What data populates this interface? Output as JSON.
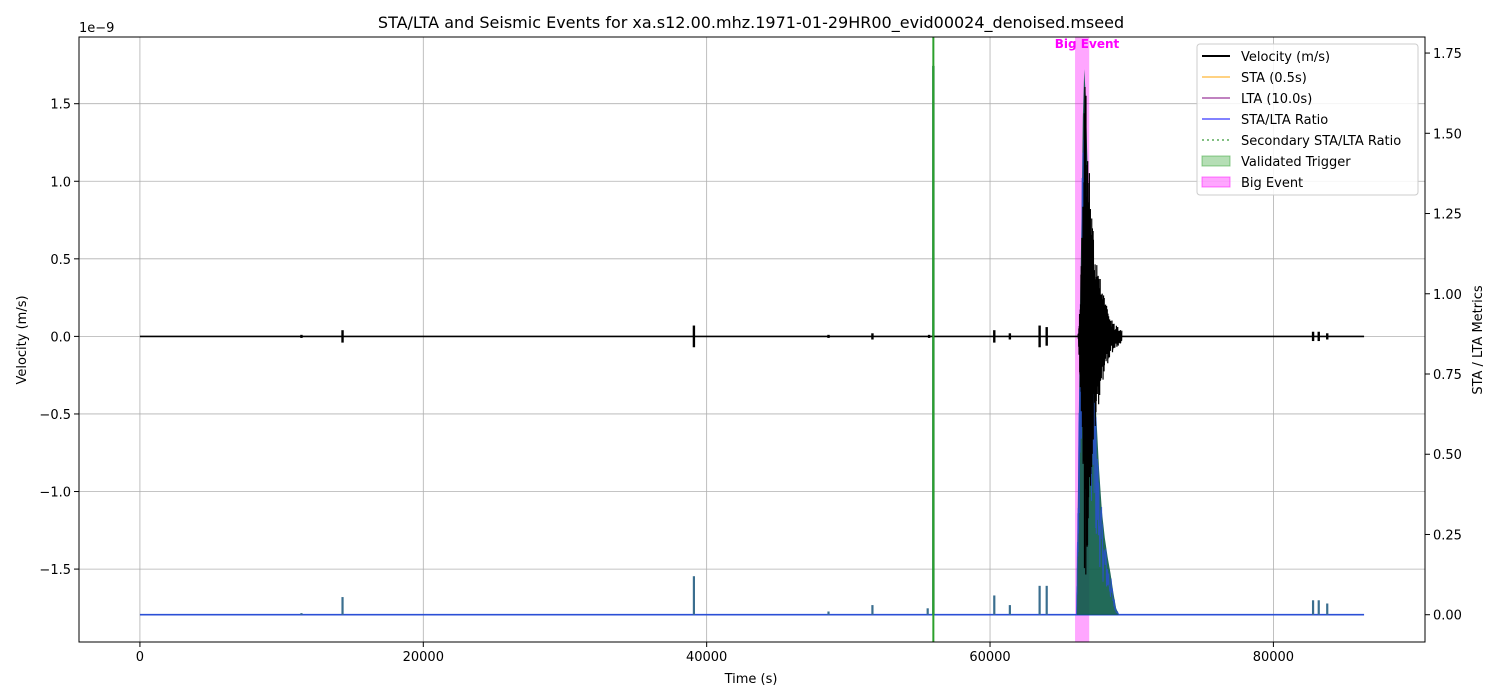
{
  "chart_data": {
    "type": "line",
    "title": "STA/LTA and Seismic Events for xa.s12.00.mhz.1971-01-29HR00_evid00024_denoised.mseed",
    "xlabel": "Time (s)",
    "ylabel_left": "Velocity (m/s)",
    "ylabel_right": "STA / LTA Metrics",
    "left_offset_label": "1e−9",
    "xlim": [
      -4300,
      90700
    ],
    "ylim_left": [
      -1.97,
      1.93
    ],
    "ylim_right": [
      -0.085,
      1.8
    ],
    "x_ticks": [
      0,
      20000,
      40000,
      60000,
      80000
    ],
    "x_tick_labels": [
      "0",
      "20000",
      "40000",
      "60000",
      "80000"
    ],
    "y_left_ticks": [
      -1.5,
      -1.0,
      -0.5,
      0.0,
      0.5,
      1.0,
      1.5
    ],
    "y_left_tick_labels": [
      "−1.5",
      "−1.0",
      "−0.5",
      "0.0",
      "0.5",
      "1.0",
      "1.5"
    ],
    "y_right_ticks": [
      0.0,
      0.25,
      0.5,
      0.75,
      1.0,
      1.25,
      1.5,
      1.75
    ],
    "y_right_tick_labels": [
      "0.00",
      "0.25",
      "0.50",
      "0.75",
      "1.00",
      "1.25",
      "1.50",
      "1.75"
    ],
    "grid": true,
    "legend_position": "top-right",
    "legend": [
      {
        "label": "Velocity (m/s)",
        "color": "#000000",
        "style": "solid"
      },
      {
        "label": "STA (0.5s)",
        "color": "#ffa500",
        "style": "solid"
      },
      {
        "label": "LTA (10.0s)",
        "color": "#800080",
        "style": "solid"
      },
      {
        "label": "STA/LTA Ratio",
        "color": "#0000ff",
        "style": "solid"
      },
      {
        "label": "Secondary STA/LTA Ratio",
        "color": "#008000",
        "style": "dotted"
      },
      {
        "label": "Validated Trigger",
        "color": "#2ca02c",
        "style": "patch"
      },
      {
        "label": "Big Event",
        "color": "#ff00ff",
        "style": "patch"
      }
    ],
    "velocity_range_x": [
      0,
      86400
    ],
    "velocity_bursts": [
      {
        "x": 11400,
        "amp": 0.01
      },
      {
        "x": 14300,
        "amp": 0.04
      },
      {
        "x": 39100,
        "amp": 0.07
      },
      {
        "x": 48600,
        "amp": 0.01
      },
      {
        "x": 51700,
        "amp": 0.02
      },
      {
        "x": 55700,
        "amp": 0.01
      },
      {
        "x": 60300,
        "amp": 0.04
      },
      {
        "x": 61400,
        "amp": 0.02
      },
      {
        "x": 63500,
        "amp": 0.07
      },
      {
        "x": 64000,
        "amp": 0.06
      },
      {
        "x": 82800,
        "amp": 0.03
      },
      {
        "x": 83200,
        "amp": 0.03
      },
      {
        "x": 83800,
        "amp": 0.02
      }
    ],
    "big_event_velocity": {
      "start": 66200,
      "peak_x": 66700,
      "end": 69300,
      "max_amp": 1.75
    },
    "ratio_spikes": [
      {
        "x": 11400,
        "y": 0.005
      },
      {
        "x": 14300,
        "y": 0.055
      },
      {
        "x": 39100,
        "y": 0.12
      },
      {
        "x": 48600,
        "y": 0.01
      },
      {
        "x": 51700,
        "y": 0.03
      },
      {
        "x": 55600,
        "y": 0.02
      },
      {
        "x": 56000,
        "y": 1.71
      },
      {
        "x": 60300,
        "y": 0.06
      },
      {
        "x": 61400,
        "y": 0.03
      },
      {
        "x": 63500,
        "y": 0.09
      },
      {
        "x": 64000,
        "y": 0.09
      },
      {
        "x": 82800,
        "y": 0.045
      },
      {
        "x": 83200,
        "y": 0.045
      },
      {
        "x": 83800,
        "y": 0.035
      }
    ],
    "ratio_event_envelope": [
      [
        66100,
        0.0
      ],
      [
        66150,
        0.18
      ],
      [
        66250,
        0.55
      ],
      [
        66350,
        0.95
      ],
      [
        66450,
        1.22
      ],
      [
        66550,
        1.55
      ],
      [
        66650,
        1.7
      ],
      [
        66750,
        1.62
      ],
      [
        66850,
        1.45
      ],
      [
        66950,
        1.3
      ],
      [
        67050,
        1.1
      ],
      [
        67200,
        0.95
      ],
      [
        67350,
        0.8
      ],
      [
        67500,
        0.62
      ],
      [
        67700,
        0.45
      ],
      [
        67900,
        0.32
      ],
      [
        68100,
        0.24
      ],
      [
        68300,
        0.18
      ],
      [
        68500,
        0.13
      ],
      [
        68700,
        0.07
      ],
      [
        68900,
        0.02
      ],
      [
        69100,
        0.0
      ]
    ],
    "validated_trigger_line_x": 56000,
    "big_event_span": [
      66000,
      67000
    ],
    "big_event_label": "Big Event"
  },
  "colors": {
    "velocity": "#000000",
    "ratio": "#2b4fd6",
    "trigger_fill": "#0a5a46",
    "trigger_line": "#2ca02c",
    "big_event": "#ff00ff",
    "big_event_label": "#ff00ff",
    "grid": "#b0b0b0"
  }
}
